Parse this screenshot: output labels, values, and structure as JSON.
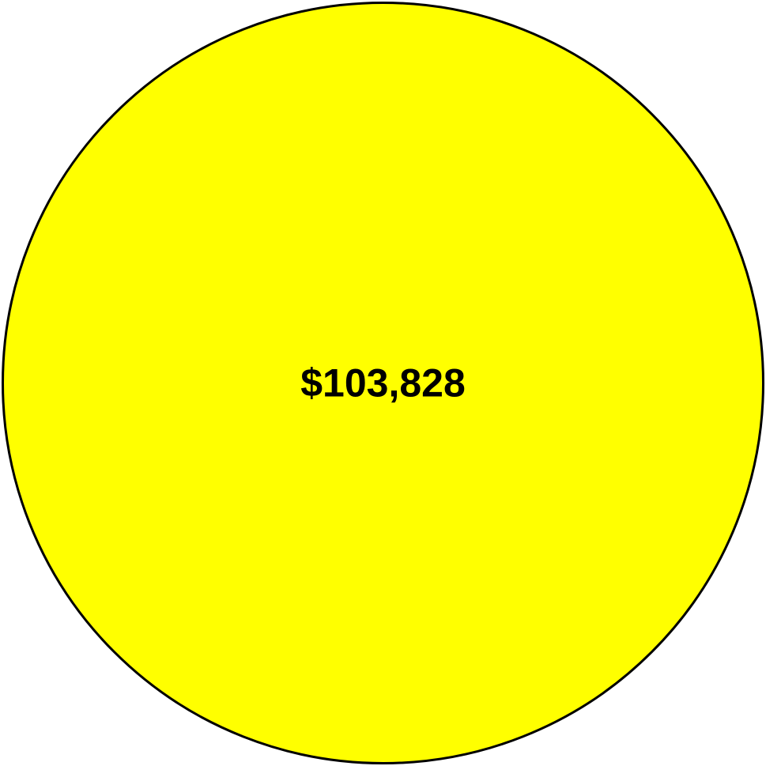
{
  "circle": {
    "label": "$103,828",
    "fill_color": "#ffff00",
    "stroke_color": "#000000",
    "text_color": "#000000"
  }
}
